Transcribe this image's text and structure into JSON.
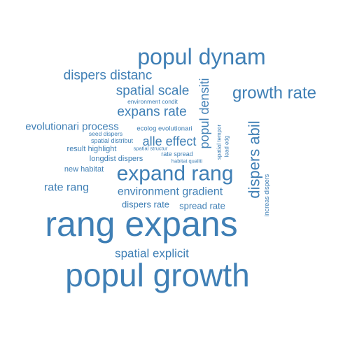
{
  "color": "#3f7fb5",
  "words": [
    {
      "id": "rang-expans",
      "text": "rang expans"
    },
    {
      "id": "popul-growth",
      "text": "popul growth"
    },
    {
      "id": "popul-dynam",
      "text": "popul dynam"
    },
    {
      "id": "expand-rang",
      "text": "expand rang"
    },
    {
      "id": "growth-rate",
      "text": "growth rate"
    },
    {
      "id": "dispers-abil",
      "text": "dispers abil"
    },
    {
      "id": "dispers-distanc",
      "text": "dispers distanc"
    },
    {
      "id": "spatial-scale",
      "text": "spatial scale"
    },
    {
      "id": "expans-rate",
      "text": "expans rate"
    },
    {
      "id": "popul-densiti",
      "text": "popul densiti"
    },
    {
      "id": "alle-effect",
      "text": "alle effect"
    },
    {
      "id": "environment-gradient",
      "text": "environment gradient"
    },
    {
      "id": "spatial-explicit",
      "text": "spatial explicit"
    },
    {
      "id": "evolutionari-process",
      "text": "evolutionari process"
    },
    {
      "id": "rate-rang",
      "text": "rate rang"
    },
    {
      "id": "dispers-rate",
      "text": "dispers rate"
    },
    {
      "id": "spread-rate",
      "text": "spread rate"
    },
    {
      "id": "result-highlight",
      "text": "result highlight"
    },
    {
      "id": "longdist-dispers",
      "text": "longdist dispers"
    },
    {
      "id": "new-habitat",
      "text": "new habitat"
    },
    {
      "id": "ecolog-evolutionari",
      "text": "ecolog evolutionari"
    },
    {
      "id": "environment-condit",
      "text": "environment condit"
    },
    {
      "id": "seed-dispers",
      "text": "seed dispers"
    },
    {
      "id": "spatial-distribut",
      "text": "spatial distribut"
    },
    {
      "id": "spatial-structur",
      "text": "spatial structur"
    },
    {
      "id": "rate-spread",
      "text": "rate spread"
    },
    {
      "id": "habitat-qualiti",
      "text": "habitat qualiti"
    },
    {
      "id": "spatial-tempor",
      "text": "spatial tempor"
    },
    {
      "id": "lead-edg",
      "text": "lead edg"
    },
    {
      "id": "increas-dispers",
      "text": "increas dispers"
    }
  ]
}
